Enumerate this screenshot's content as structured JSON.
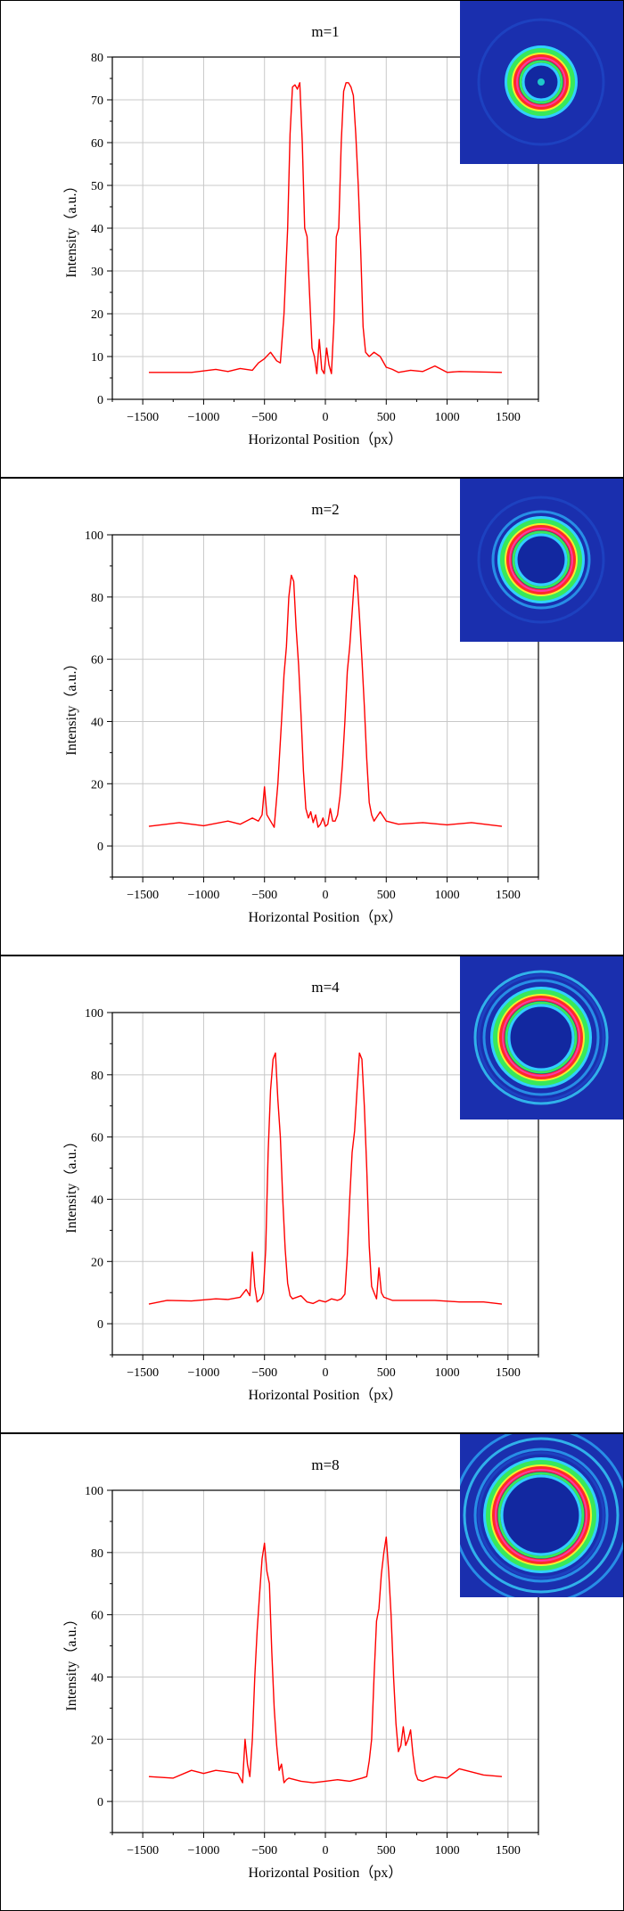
{
  "chart_data": [
    {
      "type": "line",
      "title": "m=1",
      "xlabel": "Horizontal Position（px）",
      "ylabel": "Intensity（a.u.）",
      "xlim": [
        -1750,
        1750
      ],
      "ylim": [
        0,
        80
      ],
      "xticks": [
        -1500,
        -1000,
        -500,
        0,
        500,
        1000,
        1500
      ],
      "yticks": [
        0,
        10,
        20,
        30,
        40,
        50,
        60,
        70,
        80
      ],
      "grid": true,
      "line_color": "#ff0000",
      "inset": {
        "description": "ring beam false-color image",
        "rings": 1
      },
      "series": [
        {
          "x": [
            -1450,
            -1100,
            -900,
            -800,
            -700,
            -600,
            -550,
            -500,
            -450,
            -400,
            -370,
            -340,
            -310,
            -290,
            -270,
            -250,
            -230,
            -210,
            -190,
            -170,
            -150,
            -130,
            -110,
            -90,
            -70,
            -50,
            -30,
            -10,
            10,
            30,
            50,
            70,
            90,
            110,
            130,
            150,
            170,
            190,
            210,
            230,
            250,
            270,
            290,
            310,
            330,
            360,
            400,
            450,
            500,
            550,
            600,
            700,
            800,
            900,
            1000,
            1100,
            1450
          ],
          "y": [
            6.3,
            6.3,
            7,
            6.5,
            7.2,
            6.8,
            8.5,
            9.5,
            11,
            9,
            8.5,
            20,
            40,
            62,
            73,
            73.5,
            72.5,
            74,
            60,
            40,
            38,
            25,
            12,
            10,
            6,
            14,
            7,
            6,
            12,
            8,
            6,
            18,
            38,
            40,
            60,
            72,
            74,
            74,
            73,
            71,
            62,
            50,
            35,
            17,
            11,
            10,
            11,
            10,
            7.5,
            7,
            6.3,
            6.8,
            6.5,
            7.8,
            6.3,
            6.5,
            6.3
          ]
        }
      ]
    },
    {
      "type": "line",
      "title": "m=2",
      "xlabel": "Horizontal Position（px）",
      "ylabel": "Intensity（a.u.）",
      "xlim": [
        -1750,
        1750
      ],
      "ylim": [
        -10,
        100
      ],
      "xticks": [
        -1500,
        -1000,
        -500,
        0,
        500,
        1000,
        1500
      ],
      "yticks": [
        0,
        20,
        40,
        60,
        80,
        100
      ],
      "grid": true,
      "line_color": "#ff0000",
      "inset": {
        "description": "ring beam false-color image",
        "rings": 2
      },
      "series": [
        {
          "x": [
            -1450,
            -1200,
            -1000,
            -800,
            -700,
            -600,
            -550,
            -520,
            -500,
            -480,
            -450,
            -420,
            -390,
            -360,
            -340,
            -320,
            -300,
            -280,
            -260,
            -240,
            -220,
            -200,
            -180,
            -160,
            -140,
            -120,
            -100,
            -80,
            -60,
            -40,
            -20,
            0,
            20,
            40,
            60,
            80,
            100,
            120,
            140,
            160,
            180,
            200,
            220,
            240,
            260,
            280,
            300,
            320,
            340,
            360,
            380,
            400,
            450,
            500,
            600,
            800,
            1000,
            1200,
            1450
          ],
          "y": [
            6.3,
            7.5,
            6.5,
            8,
            7,
            9,
            8,
            10,
            19,
            10,
            8,
            6,
            20,
            40,
            55,
            64,
            80,
            87,
            85,
            70,
            58,
            42,
            24,
            12,
            9,
            11,
            7.5,
            10,
            6,
            7,
            9,
            6.3,
            7,
            12,
            8,
            8,
            10,
            16,
            26,
            40,
            56,
            64,
            75,
            87,
            86,
            74,
            60,
            45,
            28,
            14,
            10,
            8,
            11,
            8,
            7,
            7.5,
            6.8,
            7.5,
            6.3
          ]
        }
      ]
    },
    {
      "type": "line",
      "title": "m=4",
      "xlabel": "Horizontal Position（px）",
      "ylabel": "Intensity（a.u.）",
      "xlim": [
        -1750,
        1750
      ],
      "ylim": [
        -10,
        100
      ],
      "xticks": [
        -1500,
        -1000,
        -500,
        0,
        500,
        1000,
        1500
      ],
      "yticks": [
        0,
        20,
        40,
        60,
        80,
        100
      ],
      "grid": true,
      "line_color": "#ff0000",
      "inset": {
        "description": "ring beam false-color image",
        "rings": 3
      },
      "series": [
        {
          "x": [
            -1450,
            -1300,
            -1100,
            -900,
            -800,
            -700,
            -650,
            -620,
            -600,
            -580,
            -560,
            -530,
            -510,
            -490,
            -470,
            -450,
            -430,
            -410,
            -390,
            -370,
            -350,
            -330,
            -310,
            -290,
            -270,
            -200,
            -150,
            -100,
            -50,
            0,
            50,
            100,
            130,
            160,
            180,
            200,
            220,
            240,
            260,
            280,
            300,
            320,
            340,
            360,
            380,
            400,
            420,
            440,
            460,
            480,
            550,
            700,
            900,
            1100,
            1300,
            1450
          ],
          "y": [
            6.3,
            7.5,
            7.3,
            8,
            7.8,
            8.5,
            11,
            9,
            23,
            12,
            7,
            8,
            10,
            24,
            55,
            75,
            85,
            87,
            72,
            60,
            40,
            24,
            13,
            9,
            8,
            9,
            7,
            6.5,
            7.5,
            7,
            8,
            7.5,
            8,
            9.5,
            22,
            40,
            55,
            62,
            75,
            87,
            85,
            70,
            50,
            25,
            12,
            10,
            8,
            18,
            10,
            8.5,
            7.5,
            7.5,
            7.5,
            7,
            7,
            6.3
          ]
        }
      ]
    },
    {
      "type": "line",
      "title": "m=8",
      "xlabel": "Horizontal Position（px）",
      "ylabel": "Intensity（a.u.）",
      "xlim": [
        -1750,
        1750
      ],
      "ylim": [
        -10,
        100
      ],
      "xticks": [
        -1500,
        -1000,
        -500,
        0,
        500,
        1000,
        1500
      ],
      "yticks": [
        0,
        20,
        40,
        60,
        80,
        100
      ],
      "grid": true,
      "line_color": "#ff0000",
      "inset": {
        "description": "ring beam false-color image",
        "rings": 4
      },
      "series": [
        {
          "x": [
            -1450,
            -1250,
            -1100,
            -1000,
            -900,
            -800,
            -720,
            -680,
            -660,
            -640,
            -620,
            -600,
            -580,
            -560,
            -540,
            -520,
            -500,
            -480,
            -460,
            -440,
            -420,
            -400,
            -380,
            -360,
            -340,
            -320,
            -300,
            -200,
            -100,
            0,
            100,
            200,
            300,
            340,
            360,
            380,
            400,
            420,
            440,
            460,
            480,
            500,
            520,
            540,
            560,
            580,
            600,
            620,
            640,
            660,
            680,
            700,
            720,
            740,
            760,
            800,
            900,
            1000,
            1100,
            1300,
            1450
          ],
          "y": [
            8,
            7.5,
            10,
            9,
            10,
            9.5,
            9,
            6,
            20,
            12,
            8,
            20,
            40,
            55,
            67,
            78,
            83,
            74,
            70,
            48,
            30,
            18,
            10,
            12,
            6,
            7,
            7.5,
            6.5,
            6,
            6.5,
            7,
            6.5,
            7.5,
            8,
            13,
            20,
            40,
            58,
            62,
            73,
            80,
            85,
            74,
            60,
            40,
            25,
            16,
            18,
            24,
            18,
            20,
            23,
            15,
            9,
            7,
            6.5,
            8,
            7.5,
            10.5,
            8.5,
            8
          ]
        }
      ]
    }
  ]
}
